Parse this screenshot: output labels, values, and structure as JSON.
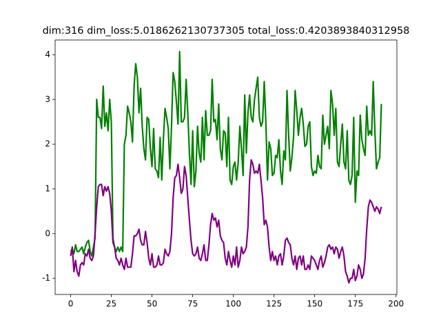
{
  "chart_data": {
    "type": "line",
    "title": "dim:316 dim_loss:5.0186262130737305 total_loss:0.4203893840312958",
    "x": [
      0,
      1,
      2,
      3,
      4,
      5,
      6,
      7,
      8,
      9,
      10,
      11,
      12,
      13,
      14,
      15,
      16,
      17,
      18,
      19,
      20,
      21,
      22,
      23,
      24,
      25,
      26,
      27,
      28,
      29,
      30,
      31,
      32,
      33,
      34,
      35,
      36,
      37,
      38,
      39,
      40,
      41,
      42,
      43,
      44,
      45,
      46,
      47,
      48,
      49,
      50,
      51,
      52,
      53,
      54,
      55,
      56,
      57,
      58,
      59,
      60,
      61,
      62,
      63,
      64,
      65,
      66,
      67,
      68,
      69,
      70,
      71,
      72,
      73,
      74,
      75,
      76,
      77,
      78,
      79,
      80,
      81,
      82,
      83,
      84,
      85,
      86,
      87,
      88,
      89,
      90,
      91,
      92,
      93,
      94,
      95,
      96,
      97,
      98,
      99,
      100,
      101,
      102,
      103,
      104,
      105,
      106,
      107,
      108,
      109,
      110,
      111,
      112,
      113,
      114,
      115,
      116,
      117,
      118,
      119,
      120,
      121,
      122,
      123,
      124,
      125,
      126,
      127,
      128,
      129,
      130,
      131,
      132,
      133,
      134,
      135,
      136,
      137,
      138,
      139,
      140,
      141,
      142,
      143,
      144,
      145,
      146,
      147,
      148,
      149,
      150,
      151,
      152,
      153,
      154,
      155,
      156,
      157,
      158,
      159,
      160,
      161,
      162,
      163,
      164,
      165,
      166,
      167,
      168,
      169,
      170,
      171,
      172,
      173,
      174,
      175,
      176,
      177,
      178,
      179,
      180,
      181,
      182,
      183,
      184,
      185,
      186,
      187,
      188,
      189,
      190,
      191
    ],
    "series": [
      {
        "color": "#008000",
        "values": [
          -0.4,
          -0.35,
          -0.45,
          -0.25,
          -0.4,
          -0.4,
          -0.35,
          -0.3,
          -0.45,
          -0.3,
          -0.2,
          -0.15,
          -0.4,
          -0.5,
          -0.3,
          -0.1,
          3.0,
          2.6,
          2.6,
          2.35,
          3.3,
          2.4,
          2.7,
          2.3,
          3.0,
          2.5,
          -0.1,
          -0.3,
          -0.4,
          -0.3,
          -0.4,
          -0.3,
          -0.4,
          2.0,
          2.2,
          2.85,
          2.7,
          2.5,
          2.05,
          3.3,
          3.8,
          3.5,
          2.7,
          3.25,
          2.4,
          1.9,
          1.65,
          2.6,
          2.55,
          1.9,
          1.5,
          2.35,
          1.45,
          1.4,
          1.25,
          2.15,
          1.2,
          2.1,
          2.8,
          2.6,
          2.35,
          1.45,
          2.4,
          3.6,
          3.4,
          2.95,
          2.45,
          4.07,
          2.5,
          2.5,
          2.6,
          3.45,
          2.7,
          1.8,
          1.1,
          2.3,
          1.05,
          1.4,
          2.4,
          1.8,
          1.6,
          2.6,
          1.65,
          2.75,
          2.2,
          2.2,
          2.3,
          3.45,
          2.5,
          2.55,
          2.1,
          2.9,
          1.9,
          1.65,
          2.3,
          2.25,
          1.5,
          2.6,
          1.2,
          1.1,
          1.5,
          1.6,
          1.2,
          1.6,
          2.4,
          1.9,
          1.3,
          3.1,
          1.8,
          2.7,
          3.1,
          2.6,
          2.5,
          3.0,
          3.25,
          3.5,
          2.6,
          2.4,
          2.5,
          3.4,
          2.5,
          1.2,
          2.05,
          1.9,
          1.3,
          1.35,
          1.75,
          1.7,
          2.1,
          1.4,
          1.1,
          1.85,
          1.65,
          3.2,
          2.2,
          1.4,
          1.7,
          2.15,
          3.2,
          2.75,
          2.2,
          2.6,
          2.8,
          2.45,
          1.95,
          2.0,
          2.4,
          2.5,
          1.5,
          1.3,
          1.4,
          1.35,
          1.75,
          1.5,
          1.45,
          2.65,
          2.0,
          2.2,
          2.4,
          1.9,
          3.2,
          2.9,
          2.2,
          2.8,
          1.6,
          1.5,
          2.0,
          2.45,
          1.6,
          1.45,
          2.3,
          1.2,
          1.1,
          1.3,
          2.6,
          0.7,
          1.4,
          1.3,
          2.65,
          2.1,
          1.9,
          1.75,
          2.85,
          2.2,
          2.3,
          2.2,
          3.4,
          2.3,
          1.45,
          1.6,
          1.7,
          2.9
        ]
      },
      {
        "color": "#800080",
        "values": [
          -0.5,
          -0.3,
          -0.85,
          -0.6,
          -0.85,
          -0.95,
          -0.7,
          -0.65,
          -0.7,
          -0.45,
          -0.5,
          -0.35,
          -0.55,
          -0.6,
          -0.5,
          0.0,
          0.6,
          1.05,
          1.1,
          1.1,
          0.85,
          1.05,
          0.95,
          1.05,
          0.9,
          0.5,
          -0.2,
          -0.3,
          -0.55,
          -0.6,
          -0.7,
          -0.55,
          -0.7,
          -0.8,
          -0.55,
          -0.75,
          -0.75,
          -0.75,
          -0.45,
          -0.05,
          -0.05,
          0.0,
          0.1,
          -0.15,
          -0.25,
          -0.25,
          0.05,
          -0.2,
          -0.55,
          -0.7,
          -0.45,
          -0.75,
          -0.75,
          -0.7,
          -0.5,
          -0.7,
          -0.7,
          -0.65,
          -0.35,
          -0.45,
          -0.5,
          -0.4,
          0.0,
          0.8,
          1.25,
          1.3,
          1.55,
          1.25,
          0.9,
          1.0,
          1.5,
          1.3,
          0.8,
          0.3,
          -0.15,
          -0.45,
          -0.5,
          -0.45,
          -0.3,
          -0.55,
          -0.6,
          -0.45,
          -0.25,
          -0.6,
          -0.6,
          -0.25,
          0.2,
          0.45,
          0.3,
          0.35,
          0.15,
          0.3,
          -0.05,
          -0.15,
          -0.2,
          -0.55,
          -0.7,
          -0.4,
          -0.6,
          -0.75,
          -0.5,
          -0.7,
          -0.3,
          -0.75,
          -0.6,
          -0.3,
          -0.45,
          -0.4,
          -0.3,
          0.15,
          1.2,
          1.65,
          1.55,
          1.35,
          1.4,
          1.35,
          1.55,
          1.2,
          0.8,
          0.2,
          0.3,
          0.15,
          -0.3,
          -0.6,
          -0.4,
          -0.6,
          -0.5,
          -0.7,
          -0.5,
          -0.45,
          -0.7,
          -0.5,
          -0.15,
          -0.1,
          -0.2,
          -0.25,
          -0.55,
          -0.7,
          -0.5,
          -0.8,
          -0.55,
          -0.5,
          -0.7,
          -0.5,
          -0.8,
          -0.8,
          -0.7,
          -0.8,
          -0.5,
          -0.55,
          -0.6,
          -0.7,
          -0.8,
          -0.6,
          -0.5,
          -0.75,
          -0.65,
          -0.5,
          -0.3,
          -0.25,
          -0.35,
          -0.3,
          -0.45,
          -0.3,
          -0.35,
          -0.55,
          -0.4,
          -0.3,
          -0.5,
          -0.85,
          -0.95,
          -1.1,
          -1.0,
          -1.0,
          -0.8,
          -1.05,
          -0.95,
          -0.7,
          -0.8,
          -1.0,
          -0.9,
          -0.55,
          0.1,
          0.6,
          0.75,
          0.7,
          0.6,
          0.5,
          0.6,
          0.55,
          0.45,
          0.6
        ]
      }
    ],
    "xlim": [
      -9.55,
      200.55
    ],
    "xticks": [
      0,
      25,
      50,
      75,
      100,
      125,
      150,
      175,
      200
    ],
    "ylim": [
      -1.36,
      4.33
    ],
    "yticks": [
      -1,
      0,
      1,
      2,
      3,
      4
    ]
  }
}
